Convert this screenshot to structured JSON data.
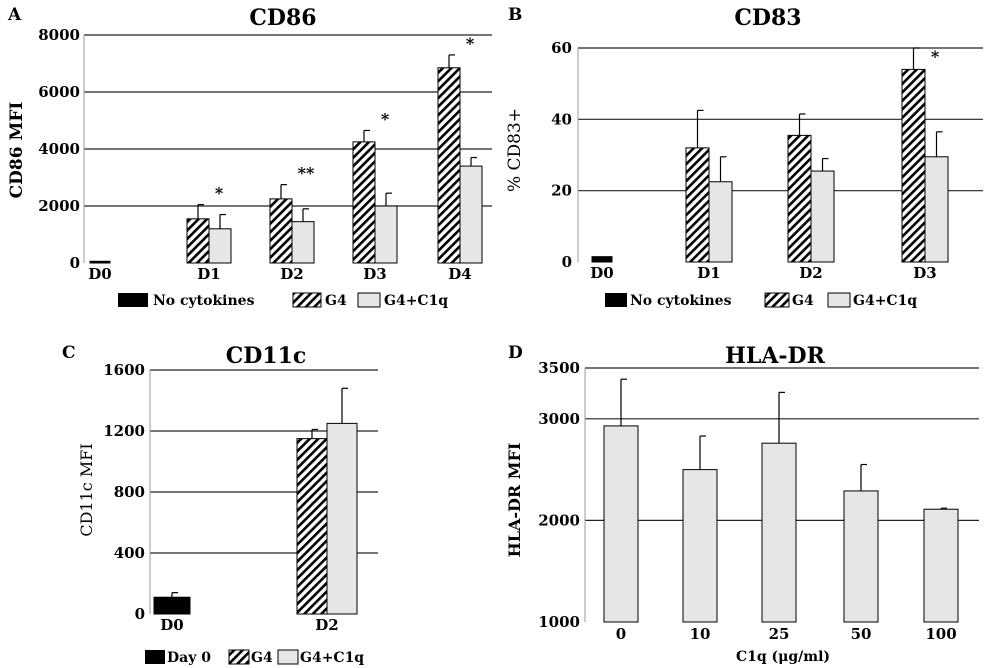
{
  "chart_data": [
    {
      "panel": "A",
      "type": "bar",
      "title": "CD86",
      "ylabel": "CD86 MFI",
      "xlabel": "",
      "ylim": [
        0,
        8000
      ],
      "yticks": [
        0,
        2000,
        4000,
        6000,
        8000
      ],
      "grid": true,
      "categories": [
        "D0",
        "D1",
        "D2",
        "D3",
        "D4"
      ],
      "series": [
        {
          "name": "No cytokines",
          "pattern": "solid-black",
          "values": [
            60,
            null,
            null,
            null,
            null
          ],
          "errors": [
            0,
            null,
            null,
            null,
            null
          ]
        },
        {
          "name": "G4",
          "pattern": "hatch",
          "values": [
            null,
            1550,
            2250,
            4250,
            6850
          ],
          "errors": [
            null,
            500,
            500,
            400,
            450
          ]
        },
        {
          "name": "G4+C1q",
          "pattern": "light-gray",
          "values": [
            null,
            1200,
            1450,
            2000,
            3400
          ],
          "errors": [
            null,
            500,
            450,
            450,
            300
          ]
        }
      ],
      "annotations": [
        {
          "category": "D1",
          "text": "*"
        },
        {
          "category": "D2",
          "text": "**"
        },
        {
          "category": "D3",
          "text": "*"
        },
        {
          "category": "D4",
          "text": "*"
        }
      ],
      "legend": [
        "No cytokines",
        "G4",
        "G4+C1q"
      ]
    },
    {
      "panel": "B",
      "type": "bar",
      "title": "CD83",
      "ylabel": "% CD83+",
      "xlabel": "",
      "ylim": [
        0,
        60
      ],
      "yticks": [
        0,
        20,
        40,
        60
      ],
      "grid": true,
      "categories": [
        "D0",
        "D1",
        "D2",
        "D3"
      ],
      "series": [
        {
          "name": "No cytokines",
          "pattern": "solid-black",
          "values": [
            1.5,
            null,
            null,
            null
          ],
          "errors": [
            0,
            null,
            null,
            null
          ]
        },
        {
          "name": "G4",
          "pattern": "hatch",
          "values": [
            null,
            32,
            35.5,
            54
          ],
          "errors": [
            null,
            10.5,
            6,
            6
          ]
        },
        {
          "name": "G4+C1q",
          "pattern": "light-gray",
          "values": [
            null,
            22.5,
            25.5,
            29.5
          ],
          "errors": [
            null,
            7,
            3.5,
            7
          ]
        }
      ],
      "annotations": [
        {
          "category": "D3",
          "text": "*"
        }
      ],
      "legend": [
        "No cytokines",
        "G4",
        "G4+C1q"
      ]
    },
    {
      "panel": "C",
      "type": "bar",
      "title": "CD11c",
      "ylabel": "CD11c MFI",
      "xlabel": "",
      "ylim": [
        0,
        1600
      ],
      "yticks": [
        0,
        400,
        800,
        1200,
        1600
      ],
      "grid": true,
      "categories": [
        "D0",
        "D2"
      ],
      "series": [
        {
          "name": "Day 0",
          "pattern": "solid-black",
          "values": [
            110,
            null
          ],
          "errors": [
            30,
            null
          ]
        },
        {
          "name": "G4",
          "pattern": "hatch",
          "values": [
            null,
            1150
          ],
          "errors": [
            null,
            60
          ]
        },
        {
          "name": "G4+C1q",
          "pattern": "light-gray",
          "values": [
            null,
            1250
          ],
          "errors": [
            null,
            230
          ]
        }
      ],
      "annotations": [],
      "legend": [
        "Day 0",
        "G4",
        "G4+C1q"
      ]
    },
    {
      "panel": "D",
      "type": "bar",
      "title": "HLA-DR",
      "ylabel": "HLA-DR MFI",
      "xlabel": "C1q (μg/ml)",
      "ylim": [
        1000,
        3500
      ],
      "yticks": [
        1000,
        2000,
        3000,
        3500
      ],
      "grid": true,
      "categories": [
        "0",
        "10",
        "25",
        "50",
        "100"
      ],
      "series": [
        {
          "name": "HLA-DR",
          "pattern": "light-gray",
          "values": [
            2930,
            2500,
            2760,
            2290,
            2110
          ],
          "errors": [
            460,
            330,
            500,
            260,
            10
          ]
        }
      ],
      "annotations": [],
      "legend": []
    }
  ]
}
